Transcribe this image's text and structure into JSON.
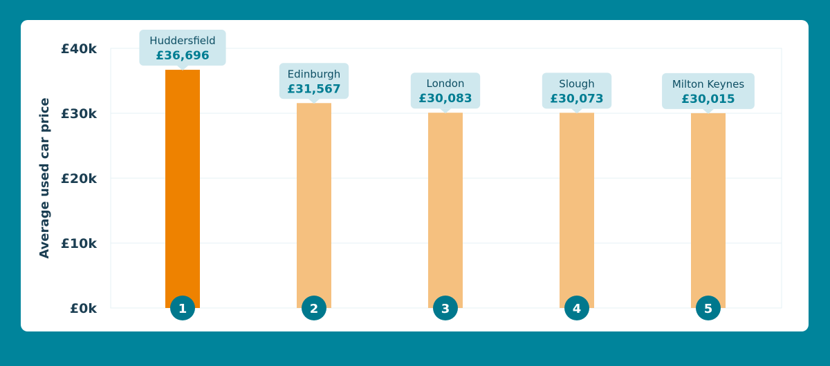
{
  "colors": {
    "background": "#00849b",
    "card": "#ffffff",
    "highlight_bar": "#ee8200",
    "bar": "#f5c07f",
    "bubble": "#cfe8ee",
    "rank_circle": "#00788d",
    "grid": "#e4f1f4",
    "text_dark": "#1b3e52"
  },
  "chart_data": {
    "type": "bar",
    "ylabel": "Average used car price",
    "ylim": [
      0,
      40000
    ],
    "ytick_values": [
      0,
      10000,
      20000,
      30000,
      40000
    ],
    "ytick_labels": [
      "£0k",
      "£10k",
      "£20k",
      "£30k",
      "£40k"
    ],
    "grid": true,
    "categories": [
      "Huddersfield",
      "Edinburgh",
      "London",
      "Slough",
      "Milton Keynes"
    ],
    "ranks": [
      "1",
      "2",
      "3",
      "4",
      "5"
    ],
    "values": [
      36696,
      31567,
      30083,
      30073,
      30015
    ],
    "value_labels": [
      "£36,696",
      "£31,567",
      "£30,083",
      "£30,073",
      "£30,015"
    ],
    "highlighted_index": 0
  }
}
